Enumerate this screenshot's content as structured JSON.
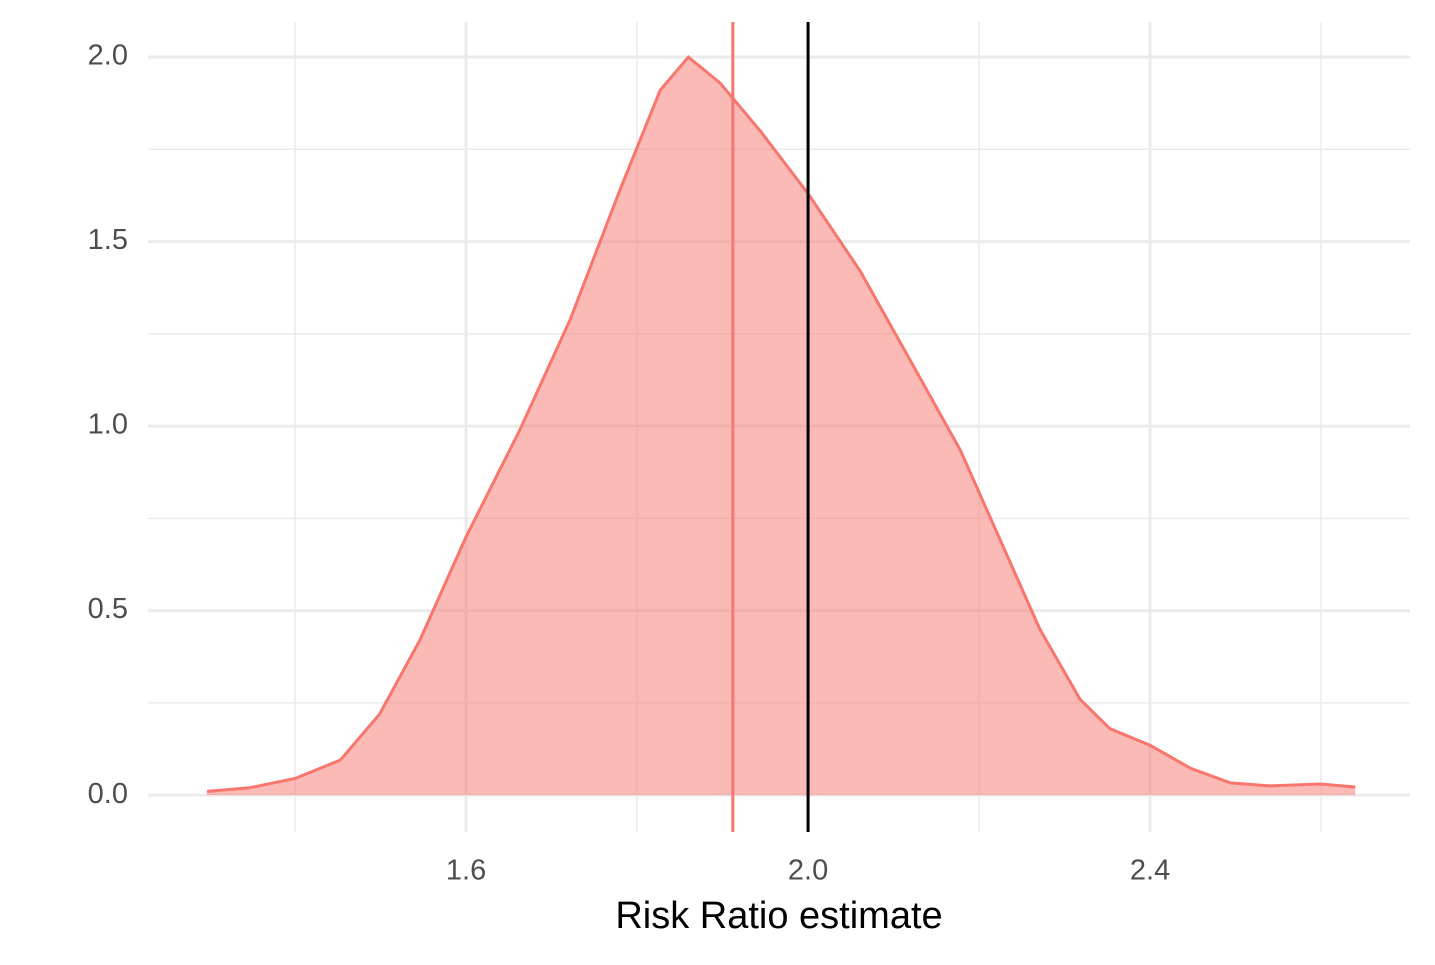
{
  "chart_data": {
    "type": "density",
    "x_label": "Risk Ratio estimate",
    "x": [
      1.297,
      1.347,
      1.4,
      1.453,
      1.499,
      1.546,
      1.6,
      1.663,
      1.722,
      1.78,
      1.827,
      1.86,
      1.897,
      1.944,
      2.0,
      2.061,
      2.119,
      2.178,
      2.225,
      2.271,
      2.318,
      2.353,
      2.4,
      2.447,
      2.494,
      2.54,
      2.599,
      2.64
    ],
    "values": [
      0.01,
      0.02,
      0.045,
      0.095,
      0.22,
      0.42,
      0.7,
      0.99,
      1.29,
      1.64,
      1.91,
      2.0,
      1.93,
      1.8,
      1.63,
      1.42,
      1.18,
      0.935,
      0.69,
      0.45,
      0.26,
      0.18,
      0.135,
      0.073,
      0.033,
      0.025,
      0.03,
      0.022
    ],
    "color": "#f8766d",
    "vlines": [
      {
        "value": 1.912,
        "color": "#f8766d"
      },
      {
        "value": 2.0,
        "color": "#000000"
      }
    ],
    "xlim": [
      1.228,
      2.704
    ],
    "ylim": [
      -0.1,
      2.095
    ],
    "xticks": [
      1.6,
      {
        "value": 2.0,
        "label": "2.0"
      },
      2.4
    ],
    "yticks": [
      {
        "value": 0,
        "label": "0.0"
      },
      0.5,
      {
        "value": 1,
        "label": "1.0"
      },
      1.5,
      {
        "value": 2,
        "label": "2.0"
      }
    ],
    "xminor": [
      1.4,
      1.8,
      2.2,
      2.6
    ],
    "yminor": [
      0.25,
      0.75,
      1.25,
      1.75
    ],
    "grid": true
  }
}
